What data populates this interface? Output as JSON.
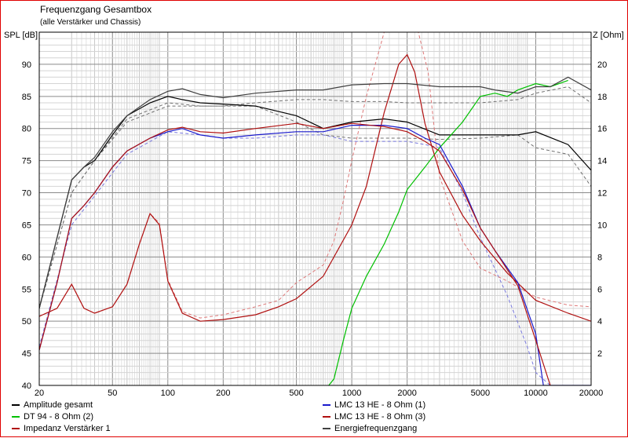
{
  "header": {
    "title": "Frequenzgang Gesamtbox",
    "subtitle": "(alle Verstärker und Chassis)",
    "y_left_label": "SPL [dB]",
    "y_right_label": "Z [Ohm]"
  },
  "chart_data": {
    "type": "line",
    "title": "Frequenzgang Gesamtbox",
    "subtitle": "(alle Verstärker und Chassis)",
    "xlabel": "",
    "ylabel": "SPL [dB]",
    "y2label": "Z [Ohm]",
    "xscale": "log",
    "xlim": [
      20,
      20000
    ],
    "ylim": [
      40,
      95
    ],
    "y2lim": [
      0,
      22
    ],
    "x_ticks": [
      20,
      50,
      100,
      200,
      500,
      1000,
      2000,
      5000,
      10000,
      20000
    ],
    "y_ticks": [
      40,
      45,
      50,
      55,
      60,
      65,
      70,
      75,
      80,
      85,
      90
    ],
    "y2_ticks": [
      2,
      4,
      6,
      8,
      10,
      12,
      14,
      16,
      18,
      20
    ],
    "grid": true,
    "legend_position": "bottom",
    "series": [
      {
        "name": "Amplitude gesamt",
        "color": "#000000",
        "axis": "left",
        "x": [
          20,
          25,
          30,
          35,
          40,
          50,
          60,
          80,
          100,
          120,
          150,
          200,
          300,
          500,
          700,
          1000,
          1500,
          2000,
          3000,
          4000,
          5000,
          6000,
          8000,
          10000,
          15000,
          20000
        ],
        "y": [
          52,
          63,
          72,
          74,
          75,
          79,
          82,
          84,
          85,
          84.5,
          84,
          83.8,
          83.5,
          82,
          80,
          81,
          81.5,
          81,
          79,
          79,
          79,
          79,
          79,
          79.5,
          77.5,
          73.5
        ]
      },
      {
        "name": "DT 94 - 8 Ohm (2)",
        "color": "#00c000",
        "axis": "left",
        "x": [
          750,
          800,
          900,
          1000,
          1200,
          1500,
          1800,
          2000,
          2500,
          3000,
          4000,
          5000,
          6000,
          7000,
          8000,
          10000,
          12000,
          15000
        ],
        "y": [
          40,
          41,
          47,
          52,
          57,
          62,
          67,
          70.5,
          74,
          77,
          81,
          85,
          85.5,
          85,
          86,
          87,
          86.5,
          87.5
        ]
      },
      {
        "name": "Impedanz Verstärker 1",
        "color": "#b01010",
        "axis": "right",
        "x": [
          20,
          25,
          30,
          35,
          40,
          50,
          60,
          70,
          80,
          90,
          100,
          120,
          150,
          200,
          300,
          400,
          500,
          700,
          1000,
          1200,
          1500,
          1800,
          2000,
          2200,
          2500,
          3000,
          4000,
          5000,
          7000,
          10000,
          15000,
          20000
        ],
        "y": [
          4.3,
          4.8,
          6.3,
          4.8,
          4.5,
          4.9,
          6.3,
          8.8,
          10.7,
          10.0,
          6.5,
          4.5,
          4.0,
          4.1,
          4.4,
          4.9,
          5.4,
          6.8,
          10.0,
          12.4,
          17.0,
          20.0,
          20.6,
          19.5,
          16.3,
          13.3,
          10.6,
          9.0,
          7.0,
          5.3,
          4.5,
          4.0
        ]
      },
      {
        "name": "LMC 13 HE - 8 Ohm (1)",
        "color": "#1a1acc",
        "axis": "left",
        "x": [
          20,
          25,
          30,
          35,
          40,
          50,
          60,
          80,
          100,
          120,
          150,
          200,
          300,
          500,
          700,
          1000,
          1500,
          2000,
          2500,
          3000,
          4000,
          5000,
          6000,
          8000,
          10000,
          11000,
          12000,
          20000
        ],
        "y": [
          45.5,
          56,
          66,
          68,
          70,
          74,
          76.5,
          78.5,
          79.5,
          80,
          79,
          78.5,
          79,
          79.5,
          79.5,
          80.5,
          80.5,
          80,
          78.5,
          77.5,
          71,
          64.5,
          61,
          56,
          48,
          40,
          40,
          40
        ]
      },
      {
        "name": "LMC 13 HE - 8 Ohm (3)",
        "color": "#b01010",
        "axis": "left",
        "x": [
          20,
          25,
          30,
          35,
          40,
          50,
          60,
          80,
          100,
          120,
          150,
          200,
          300,
          500,
          700,
          1000,
          1500,
          2000,
          2500,
          3000,
          4000,
          5000,
          6000,
          8000,
          10000,
          12000
        ],
        "y": [
          45.5,
          56,
          66,
          68,
          70,
          74,
          76.5,
          78.5,
          79.8,
          80.2,
          79.5,
          79.3,
          80,
          80.8,
          80,
          80.8,
          80.3,
          79.5,
          78,
          76.5,
          70.5,
          64.5,
          61,
          55.5,
          47,
          40
        ]
      },
      {
        "name": "Energiefrequenzgang",
        "color": "#404040",
        "axis": "left",
        "x": [
          20,
          25,
          30,
          35,
          40,
          50,
          60,
          80,
          100,
          120,
          150,
          200,
          300,
          500,
          700,
          1000,
          1500,
          2000,
          3000,
          4000,
          5000,
          6000,
          8000,
          10000,
          12000,
          15000,
          20000
        ],
        "y": [
          52,
          63,
          72,
          74,
          75.5,
          79.5,
          82,
          84.5,
          85.8,
          86.2,
          85.3,
          84.8,
          85.5,
          86,
          86,
          86.8,
          87,
          87,
          86.5,
          86.5,
          86.5,
          86,
          85.5,
          86.5,
          86.5,
          88,
          86
        ]
      }
    ],
    "dashed_reference": [
      {
        "color": "#707070",
        "axis": "left",
        "x": [
          20,
          30,
          40,
          60,
          100,
          150,
          200,
          300,
          500,
          700,
          1000,
          1500,
          2000,
          3000,
          5000,
          8000,
          10000,
          15000,
          20000
        ],
        "y": [
          52,
          70,
          75,
          81.5,
          84,
          83.5,
          83.5,
          84,
          84.5,
          84.5,
          84.2,
          84.2,
          84,
          84,
          84,
          84.5,
          85.5,
          86.5,
          84
        ]
      },
      {
        "color": "#707070",
        "axis": "left",
        "x": [
          20,
          30,
          40,
          60,
          100,
          150,
          200,
          300,
          500,
          700,
          1000,
          1500,
          2000,
          3000,
          5000,
          8000,
          10000,
          15000,
          20000
        ],
        "y": [
          52,
          70,
          75,
          81,
          83.5,
          83.5,
          83.5,
          83.5,
          81,
          79,
          78.5,
          78.5,
          78.5,
          78.3,
          78.5,
          79,
          77,
          76,
          71
        ]
      },
      {
        "color": "#7777dd",
        "axis": "left",
        "x": [
          20,
          30,
          40,
          60,
          100,
          150,
          200,
          300,
          500,
          700,
          1000,
          1500,
          2000,
          2500,
          3000,
          4000,
          5000,
          7000,
          9000,
          10000,
          12000
        ],
        "y": [
          46,
          65,
          69.5,
          76,
          79.5,
          79,
          78.5,
          78.5,
          79,
          79,
          78,
          78,
          78,
          77.5,
          77,
          70,
          63,
          54,
          46,
          42,
          40
        ]
      },
      {
        "color": "#dd7777",
        "axis": "right",
        "x": [
          20,
          25,
          30,
          35,
          40,
          50,
          60,
          70,
          80,
          90,
          100,
          120,
          150,
          200,
          300,
          400,
          500,
          700,
          800,
          900,
          1000,
          1200,
          1500,
          1800,
          2000,
          2300,
          2600,
          3000,
          4000,
          5000,
          7000,
          10000,
          15000,
          20000
        ],
        "y": [
          4.3,
          4.8,
          6.3,
          4.8,
          4.5,
          4.9,
          6.3,
          8.8,
          10.7,
          10.1,
          6.6,
          4.6,
          4.2,
          4.4,
          4.9,
          5.3,
          6.4,
          7.5,
          9.0,
          11.5,
          14.0,
          18.0,
          22.0,
          22.0,
          22.0,
          22.0,
          19.5,
          13.0,
          9.0,
          7.3,
          6.5,
          5.5,
          5.0,
          4.9
        ]
      }
    ]
  }
}
